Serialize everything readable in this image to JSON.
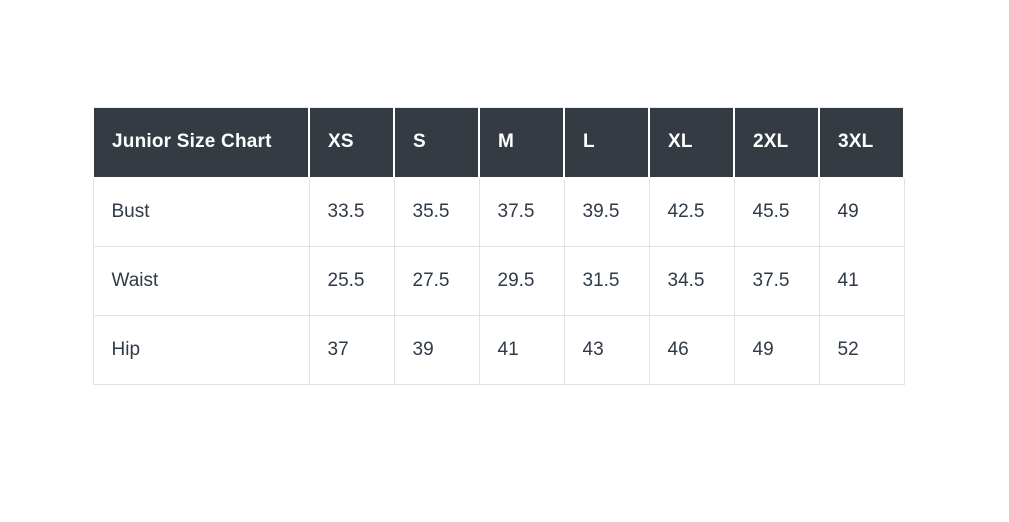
{
  "page": {
    "background": "#ffffff"
  },
  "table": {
    "title": "Junior Size Chart",
    "columns": [
      "XS",
      "S",
      "M",
      "L",
      "XL",
      "2XL",
      "3XL"
    ],
    "rows": [
      {
        "label": "Bust",
        "values": [
          "33.5",
          "35.5",
          "37.5",
          "39.5",
          "42.5",
          "45.5",
          "49"
        ]
      },
      {
        "label": "Waist",
        "values": [
          "25.5",
          "27.5",
          "29.5",
          "31.5",
          "34.5",
          "37.5",
          "41"
        ]
      },
      {
        "label": "Hip",
        "values": [
          "37",
          "39",
          "41",
          "43",
          "46",
          "49",
          "52"
        ]
      }
    ],
    "colors": {
      "header_bg": "#353b43",
      "header_text": "#ffffff",
      "body_text": "#2e3a47",
      "grid_border": "#dfe2e7",
      "page_bg": "#ffffff"
    }
  }
}
